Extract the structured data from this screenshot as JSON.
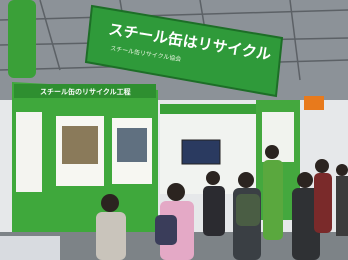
{
  "image": {
    "banner_title": "スチール缶はリサイクル",
    "banner_subtitle": "スチール缶リサイクル協会",
    "panel_title": "スチール缶のリサイクル工程"
  }
}
